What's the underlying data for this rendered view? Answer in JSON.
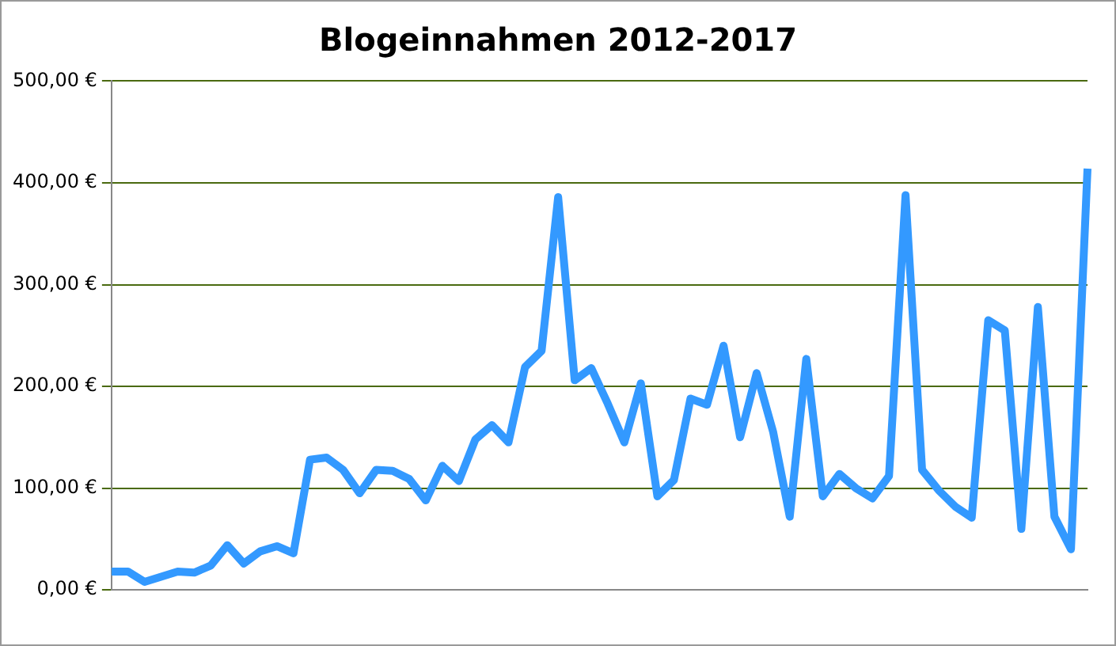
{
  "chart_data": {
    "type": "line",
    "title": "Blogeinnahmen 2012-2017",
    "categories": [
      null,
      null,
      null,
      null,
      null,
      null,
      null,
      null,
      null,
      null,
      null,
      null,
      null,
      null,
      null,
      null,
      null,
      null,
      null,
      null,
      null,
      null,
      null,
      null,
      null,
      null,
      null,
      null,
      null,
      null,
      null,
      null,
      null,
      null,
      null,
      null,
      null,
      null,
      null,
      null,
      null,
      null,
      null,
      null,
      null,
      null,
      null,
      null,
      null,
      null,
      null,
      null,
      null,
      null,
      null,
      null,
      null,
      null,
      null,
      null
    ],
    "series": [
      {
        "color": "#3399ff",
        "values": [
          18,
          18,
          8,
          13,
          18,
          17,
          24,
          44,
          26,
          38,
          43,
          36,
          128,
          130,
          118,
          95,
          118,
          117,
          109,
          88,
          122,
          107,
          148,
          162,
          145,
          219,
          235,
          386,
          206,
          218,
          183,
          145,
          203,
          92,
          108,
          188,
          182,
          240,
          150,
          213,
          155,
          72,
          227,
          92,
          114,
          100,
          90,
          112,
          388,
          118,
          98,
          82,
          71,
          265,
          255,
          60,
          278,
          72,
          40,
          414
        ]
      }
    ],
    "ylim": [
      0,
      500
    ],
    "yticks": [
      {
        "value": 0,
        "label": "0,00 €"
      },
      {
        "value": 100,
        "label": "100,00 €"
      },
      {
        "value": 200,
        "label": "200,00 €"
      },
      {
        "value": 300,
        "label": "300,00 €"
      },
      {
        "value": 400,
        "label": "400,00 €"
      },
      {
        "value": 500,
        "label": "500,00 €"
      }
    ],
    "grid": "y",
    "legend": false,
    "marker": "none",
    "line_style": "solid"
  }
}
